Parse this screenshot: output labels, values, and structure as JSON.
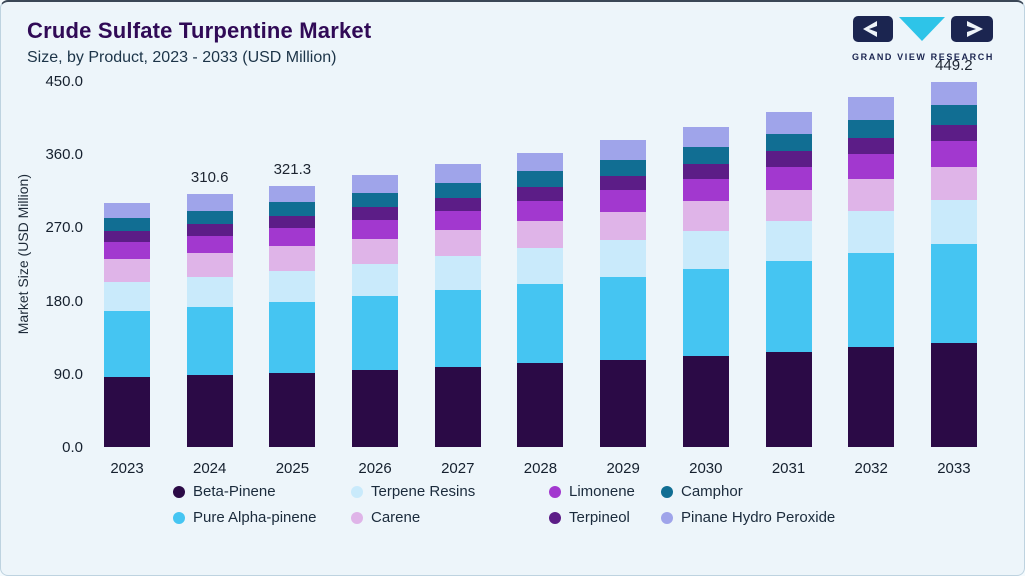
{
  "page": {
    "title": "Crude Sulfate Turpentine Market",
    "subtitle": "Size, by Product, 2023 - 2033 (USD Million)"
  },
  "logo": {
    "text": "GRAND VIEW RESEARCH",
    "navy": "#1b2550",
    "cyan": "#2ec4e8"
  },
  "chart_data": {
    "type": "bar",
    "stacked": true,
    "title": "Crude Sulfate Turpentine Market Size, by Product, 2023 - 2033 (USD Million)",
    "xlabel": "",
    "ylabel": "Market Size (USD Million)",
    "ylim": [
      0,
      450
    ],
    "ytick_step": 90,
    "grid": false,
    "legend_position": "bottom",
    "categories": [
      "2023",
      "2024",
      "2025",
      "2026",
      "2027",
      "2028",
      "2029",
      "2030",
      "2031",
      "2032",
      "2033"
    ],
    "series": [
      {
        "name": "Beta-Pinene",
        "color": "#2b0a46",
        "values": [
          85.7,
          88.5,
          91.6,
          95.2,
          99.0,
          103.2,
          107.6,
          112.3,
          117.3,
          122.6,
          128.0
        ]
      },
      {
        "name": "Pure Alpha-pinene",
        "color": "#45c5f2",
        "values": [
          81.2,
          83.9,
          86.8,
          90.2,
          93.8,
          97.7,
          101.9,
          106.4,
          111.1,
          116.1,
          121.3
        ]
      },
      {
        "name": "Terpene Resins",
        "color": "#c9eafb",
        "values": [
          36.1,
          37.3,
          38.6,
          40.1,
          41.7,
          43.4,
          45.3,
          47.3,
          49.4,
          51.6,
          53.9
        ]
      },
      {
        "name": "Carene",
        "color": "#dfb4e8",
        "values": [
          27.7,
          28.6,
          29.6,
          30.7,
          32.0,
          33.3,
          34.7,
          36.2,
          37.9,
          39.6,
          41.3
        ]
      },
      {
        "name": "Limonene",
        "color": "#a238cf",
        "values": [
          21.0,
          21.7,
          22.5,
          23.4,
          24.3,
          25.3,
          26.4,
          27.6,
          28.8,
          30.1,
          31.4
        ]
      },
      {
        "name": "Terpineol",
        "color": "#5c1d87",
        "values": [
          13.8,
          14.3,
          14.8,
          15.4,
          16.0,
          16.7,
          17.4,
          18.1,
          18.9,
          19.8,
          20.7
        ]
      },
      {
        "name": "Camphor",
        "color": "#116e93",
        "values": [
          15.9,
          16.5,
          17.0,
          17.7,
          18.4,
          19.2,
          20.0,
          20.9,
          21.8,
          22.8,
          23.8
        ]
      },
      {
        "name": "Pinane Hydro Peroxide",
        "color": "#9fa4ea",
        "values": [
          19.2,
          19.9,
          20.6,
          21.4,
          22.2,
          23.2,
          24.2,
          25.2,
          26.3,
          27.5,
          28.7
        ]
      }
    ],
    "annotations": [
      {
        "category": "2024",
        "text": "310.6"
      },
      {
        "category": "2025",
        "text": "321.3"
      },
      {
        "category": "2033",
        "text": "449.2"
      }
    ],
    "legend_order": [
      "Beta-Pinene",
      "Terpene Resins",
      "Limonene",
      "Camphor",
      "Pure Alpha-pinene",
      "Carene",
      "Terpineol",
      "Pinane Hydro Peroxide"
    ]
  }
}
